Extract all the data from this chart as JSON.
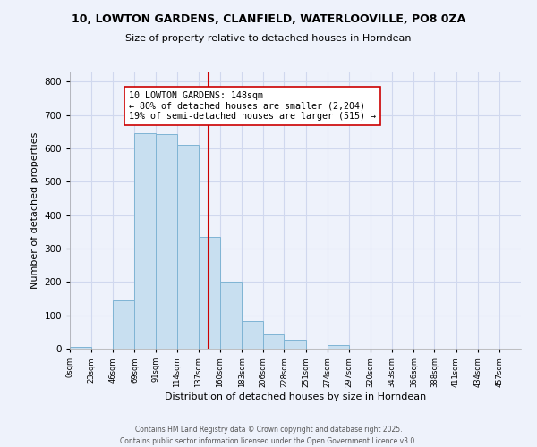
{
  "title": "10, LOWTON GARDENS, CLANFIELD, WATERLOOVILLE, PO8 0ZA",
  "subtitle": "Size of property relative to detached houses in Horndean",
  "xlabel": "Distribution of detached houses by size in Horndean",
  "ylabel": "Number of detached properties",
  "bar_labels": [
    "0sqm",
    "23sqm",
    "46sqm",
    "69sqm",
    "91sqm",
    "114sqm",
    "137sqm",
    "160sqm",
    "183sqm",
    "206sqm",
    "228sqm",
    "251sqm",
    "274sqm",
    "297sqm",
    "320sqm",
    "343sqm",
    "366sqm",
    "388sqm",
    "411sqm",
    "434sqm",
    "457sqm"
  ],
  "bar_values": [
    5,
    0,
    145,
    645,
    642,
    610,
    336,
    200,
    84,
    42,
    26,
    0,
    10,
    0,
    0,
    0,
    0,
    0,
    0,
    0,
    0
  ],
  "bar_edges": [
    0,
    23,
    46,
    69,
    91,
    114,
    137,
    160,
    183,
    206,
    228,
    251,
    274,
    297,
    320,
    343,
    366,
    388,
    411,
    434,
    457,
    480
  ],
  "bar_color": "#c8dff0",
  "bar_edge_color": "#7fb4d4",
  "vline_x": 148,
  "vline_color": "#cc0000",
  "ylim": [
    0,
    830
  ],
  "xlim": [
    0,
    480
  ],
  "annotation_title": "10 LOWTON GARDENS: 148sqm",
  "annotation_line1": "← 80% of detached houses are smaller (2,204)",
  "annotation_line2": "19% of semi-detached houses are larger (515) →",
  "annotation_box_color": "#ffffff",
  "annotation_box_edge": "#cc0000",
  "footer1": "Contains HM Land Registry data © Crown copyright and database right 2025.",
  "footer2": "Contains public sector information licensed under the Open Government Licence v3.0.",
  "background_color": "#eef2fb",
  "grid_color": "#d0d8ee"
}
